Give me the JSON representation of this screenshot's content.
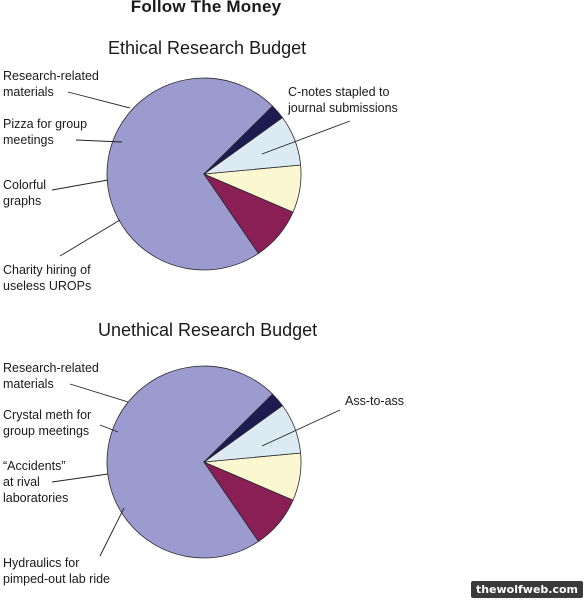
{
  "page": {
    "title": "Follow The Money",
    "watermark": "thewolfweb.com"
  },
  "colors": {
    "lavender": "#9b9bcf",
    "maroon": "#8a1f55",
    "light_blue": "#dcebf3",
    "cream": "#fbf7d1",
    "navy": "#1d1b52",
    "outline": "#2a2a2a"
  },
  "chart_data": [
    {
      "type": "pie",
      "title": "Ethical Research Budget",
      "slices": [
        {
          "label": "C-notes stapled to\njournal submissions",
          "value": 72,
          "color": "#9b9bcf"
        },
        {
          "label": "Charity hiring of\nuseless UROPs",
          "value": 9,
          "color": "#8a1f55"
        },
        {
          "label": "Colorful\ngraphs",
          "value": 8,
          "color": "#fbf7d1"
        },
        {
          "label": "Pizza for group\nmeetings",
          "value": 8.5,
          "color": "#dcebf3"
        },
        {
          "label": "Research-related\nmaterials",
          "value": 2.5,
          "color": "#1d1b52"
        }
      ]
    },
    {
      "type": "pie",
      "title": "Unethical Research Budget",
      "slices": [
        {
          "label": "Ass-to-ass",
          "value": 72,
          "color": "#9b9bcf"
        },
        {
          "label": "Hydraulics for\npimped-out lab ride",
          "value": 9,
          "color": "#8a1f55"
        },
        {
          "label": "“Accidents”\nat rival\nlaboratories",
          "value": 8,
          "color": "#fbf7d1"
        },
        {
          "label": "Crystal meth for\ngroup meetings",
          "value": 8.5,
          "color": "#dcebf3"
        },
        {
          "label": "Research-related\nmaterials",
          "value": 2.5,
          "color": "#1d1b52"
        }
      ]
    }
  ]
}
